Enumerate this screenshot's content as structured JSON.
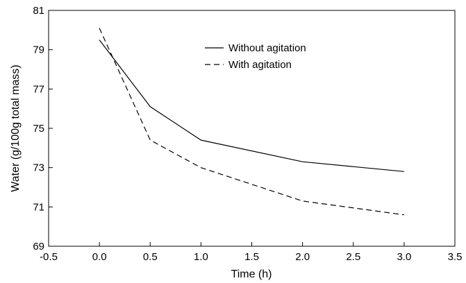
{
  "chart_data": {
    "type": "line",
    "xlabel": "Time (h)",
    "ylabel": "Water (g/100g total mass)",
    "xlim": [
      -0.5,
      3.5
    ],
    "ylim": [
      69,
      81
    ],
    "x_ticks": [
      -0.5,
      0.0,
      0.5,
      1.0,
      1.5,
      2.0,
      2.5,
      3.0,
      3.5
    ],
    "x_tick_labels": [
      "-0.5",
      "0.0",
      "0.5",
      "1.0",
      "1.5",
      "2.0",
      "2.5",
      "3.0",
      "3.5"
    ],
    "y_ticks": [
      69,
      71,
      73,
      75,
      77,
      79,
      81
    ],
    "y_tick_labels": [
      "69",
      "71",
      "73",
      "75",
      "77",
      "79",
      "81"
    ],
    "grid": false,
    "legend_position": "top-center",
    "series": [
      {
        "name": "Without agitation",
        "style": "solid",
        "color": "#000000",
        "x": [
          0,
          0.5,
          1,
          2,
          3
        ],
        "y": [
          79.5,
          76.1,
          74.4,
          73.3,
          72.8
        ]
      },
      {
        "name": "With agitation",
        "style": "dashed",
        "color": "#000000",
        "x": [
          0,
          0.5,
          1,
          2,
          3
        ],
        "y": [
          80.1,
          74.4,
          73.0,
          71.3,
          70.6
        ]
      }
    ]
  }
}
